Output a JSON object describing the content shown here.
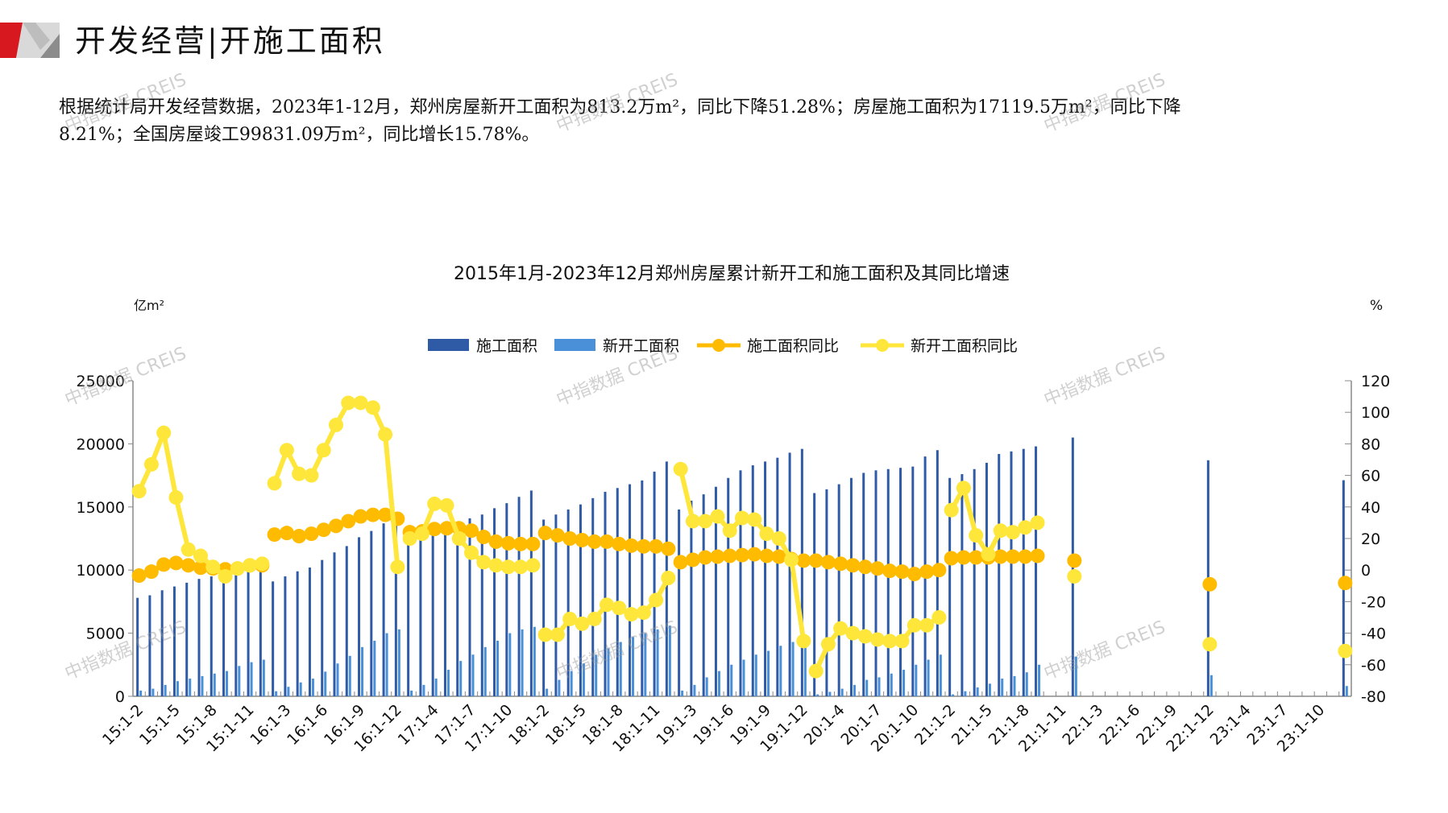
{
  "header": {
    "title": "开发经营|开施工面积",
    "paragraph_line1": "根据统计局开发经营数据，2023年1-12月，郑州房屋新开工面积为813.2万m²，同比下降51.28%；房屋施工面积为17119.5万m²，同比下降",
    "paragraph_line2": "8.21%；全国房屋竣工99831.09万m²，同比增长15.78%。"
  },
  "watermark": "中指数据 CREIS",
  "colors": {
    "construction": "#2f5ba6",
    "new_start": "#4a90d9",
    "construction_yoy": "#ffbb00",
    "new_start_yoy": "#ffe63b",
    "axis": "#888888"
  },
  "chart_data": {
    "type": "bar+line",
    "title": "2015年1月-2023年12月郑州房屋累计新开工和施工面积及其同比增速",
    "ylabel_left": "亿m²",
    "ylabel_right": "%",
    "ylim_left": [
      0,
      25000
    ],
    "ylim_right": [
      -80,
      120
    ],
    "yticks_left": [
      "0",
      "5000",
      "10000",
      "15000",
      "20000",
      "25000"
    ],
    "yticks_right": [
      "-80",
      "-60",
      "-40",
      "-20",
      "0",
      "20",
      "40",
      "60",
      "80",
      "100",
      "120"
    ],
    "legend_position": "top-center",
    "years": [
      "15",
      "16",
      "17",
      "18",
      "19",
      "20",
      "21",
      "22",
      "23"
    ],
    "months": [
      "1-2",
      "1-3",
      "1-4",
      "1-5",
      "1-6",
      "1-7",
      "1-8",
      "1-9",
      "1-10",
      "1-11",
      "1-12"
    ],
    "x_tick_labels": [
      "15:1-2",
      "15:1-5",
      "15:1-8",
      "15:1-11",
      "16:1-3",
      "16:1-6",
      "16:1-9",
      "16:1-12",
      "17:1-4",
      "17:1-7",
      "17:1-10",
      "18:1-2",
      "18:1-5",
      "18:1-8",
      "18:1-11",
      "19:1-3",
      "19:1-6",
      "19:1-9",
      "19:1-12",
      "20:1-4",
      "20:1-7",
      "20:1-10",
      "21:1-2",
      "21:1-5",
      "21:1-8",
      "21:1-11",
      "22:1-3",
      "22:1-6",
      "22:1-9",
      "22:1-12",
      "23:1-4",
      "23:1-7",
      "23:1-10"
    ],
    "series": [
      {
        "name": "施工面积",
        "type": "bar",
        "axis": "left",
        "values": [
          7800,
          8000,
          8400,
          8700,
          9000,
          9300,
          9500,
          9600,
          9800,
          10000,
          10200,
          9100,
          9500,
          9900,
          10200,
          10800,
          11400,
          11900,
          12600,
          13100,
          13700,
          13800,
          12100,
          12500,
          12900,
          13300,
          13700,
          14100,
          14400,
          14900,
          15300,
          15800,
          16300,
          14000,
          14400,
          14800,
          15200,
          15700,
          16200,
          16500,
          16800,
          17100,
          17800,
          18600,
          14800,
          15500,
          16000,
          16600,
          17300,
          17900,
          18300,
          18600,
          18900,
          19300,
          19600,
          16100,
          16400,
          16800,
          17300,
          17700,
          17900,
          18000,
          18100,
          18200,
          19000,
          19500,
          17300,
          17600,
          18000,
          18500,
          19200,
          19400,
          19600,
          19800,
          null,
          null,
          20500,
          null,
          null,
          null,
          null,
          null,
          null,
          null,
          null,
          null,
          null,
          18700,
          null,
          null,
          null,
          null,
          null,
          null,
          null,
          null,
          null,
          null,
          17119.5
        ]
      },
      {
        "name": "新开工面积",
        "type": "bar",
        "axis": "left",
        "values": [
          450,
          600,
          900,
          1200,
          1400,
          1600,
          1800,
          2000,
          2400,
          2700,
          2900,
          400,
          750,
          1100,
          1400,
          1950,
          2600,
          3200,
          3900,
          4400,
          5000,
          5300,
          450,
          900,
          1400,
          2100,
          2800,
          3300,
          3900,
          4400,
          5000,
          5300,
          5500,
          600,
          1300,
          2000,
          2600,
          3300,
          3800,
          4300,
          4700,
          5000,
          5300,
          5600,
          450,
          900,
          1500,
          2000,
          2500,
          2900,
          3300,
          3600,
          4000,
          4300,
          4700,
          150,
          350,
          600,
          900,
          1300,
          1500,
          1800,
          2100,
          2500,
          2900,
          3300,
          150,
          400,
          700,
          1000,
          1400,
          1600,
          1900,
          2500,
          null,
          null,
          3150,
          null,
          null,
          null,
          null,
          null,
          null,
          null,
          null,
          null,
          null,
          1669,
          null,
          null,
          null,
          null,
          null,
          null,
          null,
          null,
          null,
          null,
          813.2
        ]
      },
      {
        "name": "施工面积同比",
        "type": "line",
        "axis": "right",
        "values": [
          -3.5,
          -1,
          3.5,
          4.5,
          3,
          1.5,
          1,
          0.5,
          1,
          3,
          3,
          22.5,
          23.5,
          21.5,
          23,
          25.5,
          28,
          31,
          34,
          35,
          35,
          32.5,
          24,
          24.5,
          26,
          26.5,
          26.5,
          25,
          21,
          18,
          17,
          16.5,
          16.5,
          23.5,
          22,
          20,
          19,
          18,
          18,
          16.5,
          15.5,
          15,
          15,
          13.5,
          5,
          6.5,
          8,
          8.5,
          9,
          9.5,
          10,
          9,
          8.5,
          7,
          6,
          6,
          5,
          4,
          3,
          2,
          1,
          -0.5,
          -1,
          -2.5,
          -1,
          0,
          7.5,
          8,
          8,
          8,
          8.5,
          8.5,
          8.5,
          9,
          null,
          null,
          6,
          null,
          null,
          null,
          null,
          null,
          null,
          null,
          null,
          null,
          null,
          -9,
          null,
          null,
          null,
          null,
          null,
          null,
          null,
          null,
          null,
          null,
          -8.21
        ]
      },
      {
        "name": "新开工面积同比",
        "type": "line",
        "axis": "right",
        "values": [
          50,
          67,
          87,
          46,
          13,
          9,
          2,
          -4,
          1,
          3,
          4,
          55,
          76,
          61,
          60,
          76,
          92,
          106,
          106,
          103,
          86,
          2,
          20,
          23,
          42,
          41,
          20,
          11,
          5,
          3,
          2,
          2,
          3,
          -41,
          -41,
          -31,
          -34,
          -31,
          -22,
          -24,
          -28,
          -27,
          -19,
          -5,
          64,
          31,
          31,
          34,
          25,
          33,
          32,
          23,
          20,
          6.5,
          -45,
          -64,
          -47,
          -37,
          -40,
          -42,
          -44,
          -45,
          -45,
          -35,
          -35,
          -30,
          38,
          52,
          22,
          10,
          25,
          24,
          27,
          30,
          null,
          null,
          -4,
          null,
          null,
          null,
          null,
          null,
          null,
          null,
          null,
          null,
          null,
          -47,
          null,
          null,
          null,
          null,
          null,
          null,
          null,
          null,
          null,
          null,
          -51.28
        ]
      }
    ]
  }
}
